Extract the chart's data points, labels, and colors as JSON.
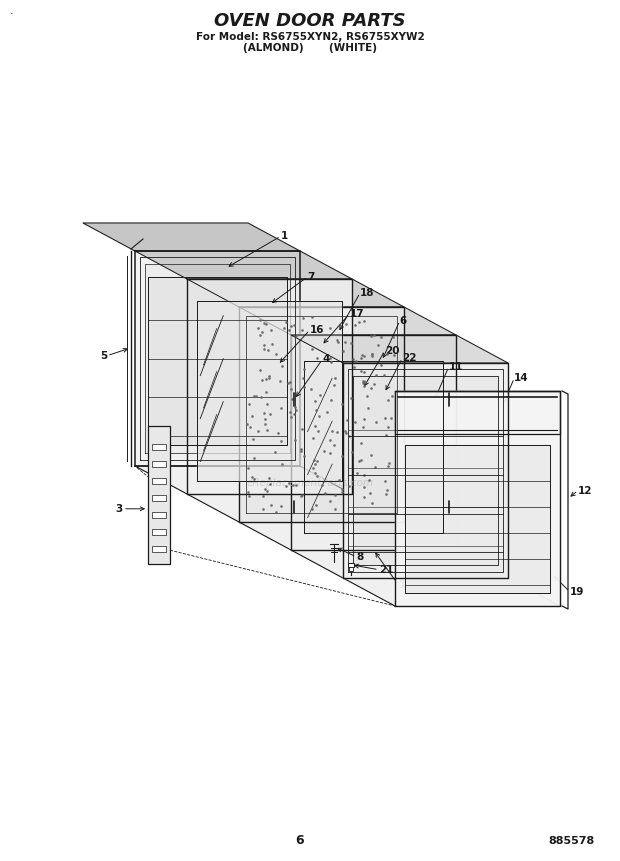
{
  "title_line1": "OVEN DOOR PARTS",
  "title_line2": "For Model: RS6755XYN2, RS6755XYW2",
  "title_line3": "(ALMOND)       (WHITE)",
  "page_number": "6",
  "doc_number": "885578",
  "watermark": "eReplacementParts.com",
  "background_color": "#ffffff",
  "line_color": "#1a1a1a",
  "corner_dot": "·",
  "title_fontsize": 13,
  "subtitle_fontsize": 7.5
}
